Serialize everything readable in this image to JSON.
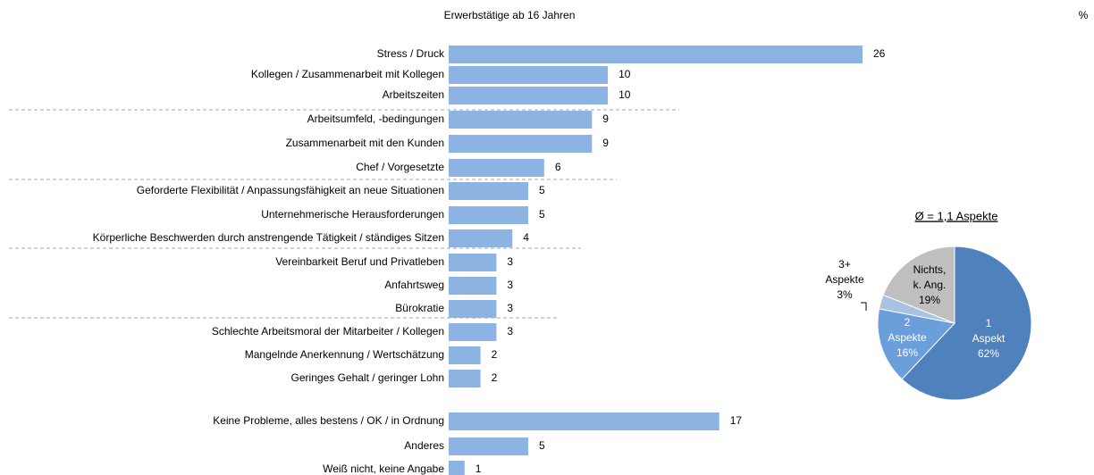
{
  "chart_data": [
    {
      "type": "bar",
      "title": "Erwerbstätige ab 16 Jahren",
      "axis_label": "%",
      "color": "#8db3e2",
      "categories": [
        "Stress / Druck",
        "Kollegen / Zusammenarbeit mit Kollegen",
        "Arbeitszeiten",
        "Arbeitsumfeld, -bedingungen",
        "Zusammenarbeit mit den Kunden",
        "Chef / Vorgesetzte",
        "Geforderte Flexibilität / Anpassungsfähigkeit an neue Situationen",
        "Unternehmerische Herausforderungen",
        "Körperliche Beschwerden durch anstrengende Tätigkeit / ständiges Sitzen",
        "Vereinbarkeit Beruf und Privatleben",
        "Anfahrtsweg",
        "Bürokratie",
        "Schlechte Arbeitsmoral der Mitarbeiter / Kollegen",
        "Mangelnde Anerkennung / Wertschätzung",
        "Geringes Gehalt / geringer Lohn"
      ],
      "values": [
        26,
        10,
        10,
        9,
        9,
        6,
        5,
        5,
        4,
        3,
        3,
        3,
        3,
        2,
        2
      ]
    },
    {
      "type": "bar",
      "color": "#8db3e2",
      "categories": [
        "Keine Probleme, alles bestens / OK / in Ordnung",
        "Anderes",
        "Weiß nicht, keine Angabe"
      ],
      "values": [
        17,
        5,
        1
      ]
    },
    {
      "type": "pie",
      "title": "Ø = 1,1 Aspekte",
      "categories": [
        [
          "1",
          "Aspekt"
        ],
        [
          "2",
          "Aspekte"
        ],
        [
          "3+",
          "Aspekte"
        ],
        [
          "Nichts,",
          "k. Ang."
        ]
      ],
      "values": [
        62,
        16,
        3,
        19
      ],
      "value_labels": [
        "62%",
        "16%",
        "3%",
        "19%"
      ],
      "colors": [
        "#4f81bd",
        "#6b9fdc",
        "#a9c2e2",
        "#bfbfbf"
      ]
    }
  ]
}
